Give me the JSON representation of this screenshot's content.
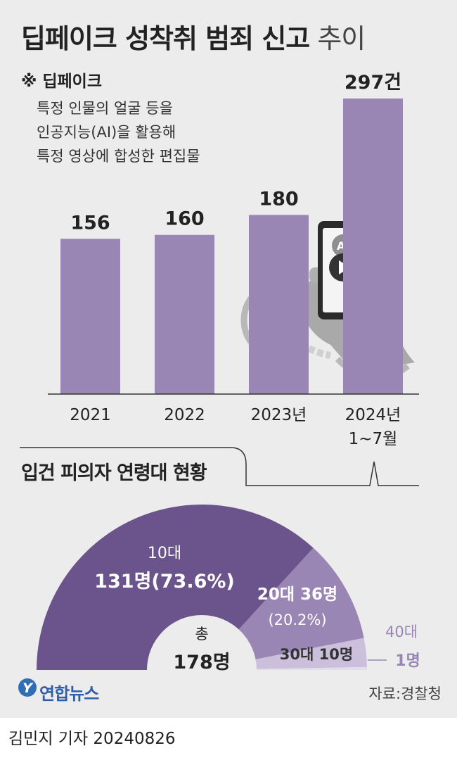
{
  "title": {
    "bold": "딥페이크 성착취 범죄 신고",
    "light": " 추이"
  },
  "note": {
    "heading": "※ 딥페이크",
    "lines": [
      "특정 인물의 얼굴 등을",
      "인공지능(AI)을 활용해",
      "특정 영상에 합성한 편집물"
    ]
  },
  "phone_label": "AI",
  "chart_data": [
    {
      "type": "bar",
      "categories": [
        "2021",
        "2022",
        "2023년",
        "2024년\n1~7월"
      ],
      "category_lines": [
        [
          "2021"
        ],
        [
          "2022"
        ],
        [
          "2023년"
        ],
        [
          "2024년",
          "1~7월"
        ]
      ],
      "values": [
        156,
        160,
        180,
        297
      ],
      "value_labels": [
        "156",
        "160",
        "180",
        "297건"
      ],
      "ylim": [
        0,
        297
      ],
      "color": "#9a86b5"
    },
    {
      "type": "pie",
      "title": "입건 피의자 연령대 현황",
      "total_label": [
        "총",
        "178명"
      ],
      "slices": [
        {
          "name": "10대",
          "value": 131,
          "label_lines": [
            "10대",
            "131명(73.6%)"
          ],
          "color": "#6b538c"
        },
        {
          "name": "20대",
          "value": 36,
          "label_lines": [
            "20대 36명",
            "(20.2%)"
          ],
          "color": "#9a86b5"
        },
        {
          "name": "30대",
          "value": 10,
          "label_lines": [
            "30대 10명"
          ],
          "color": "#cbbfdc"
        },
        {
          "name": "40대",
          "value": 1,
          "label_lines": [
            "40대",
            "1명"
          ],
          "color": "#e3dcec"
        }
      ]
    }
  ],
  "source": "자료:경찰청",
  "logo": "연합뉴스",
  "byline": "김민지 기자  20240826"
}
